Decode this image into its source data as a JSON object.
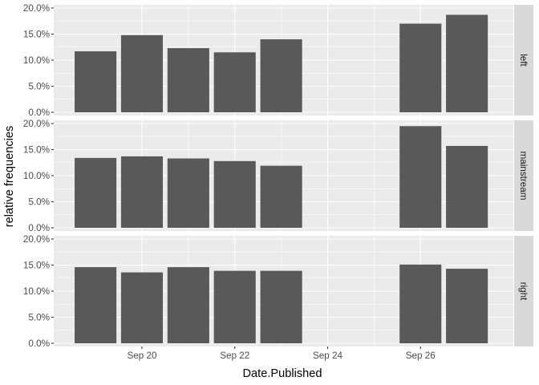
{
  "chart_data": {
    "type": "bar",
    "xlabel": "Date.Published",
    "ylabel": "relative frequencies",
    "x_ticks": [
      "Sep 20",
      "Sep 22",
      "Sep 24",
      "Sep 26"
    ],
    "y_ticks": [
      "0.0%",
      "5.0%",
      "10.0%",
      "15.0%",
      "20.0%"
    ],
    "ylim": [
      0,
      0.2
    ],
    "grid": true,
    "bar_color": "#595959",
    "panel_background": "#ebebeb",
    "strip_background": "#d9d9d9",
    "dates": [
      "Sep 19",
      "Sep 20",
      "Sep 21",
      "Sep 22",
      "Sep 23",
      "Sep 26",
      "Sep 27"
    ],
    "panels": [
      {
        "label": "left",
        "values": [
          0.117,
          0.148,
          0.123,
          0.115,
          0.14,
          0.17,
          0.187
        ]
      },
      {
        "label": "mainstream",
        "values": [
          0.134,
          0.137,
          0.133,
          0.128,
          0.119,
          0.195,
          0.157
        ]
      },
      {
        "label": "right",
        "values": [
          0.146,
          0.136,
          0.146,
          0.139,
          0.139,
          0.151,
          0.143
        ]
      }
    ]
  }
}
